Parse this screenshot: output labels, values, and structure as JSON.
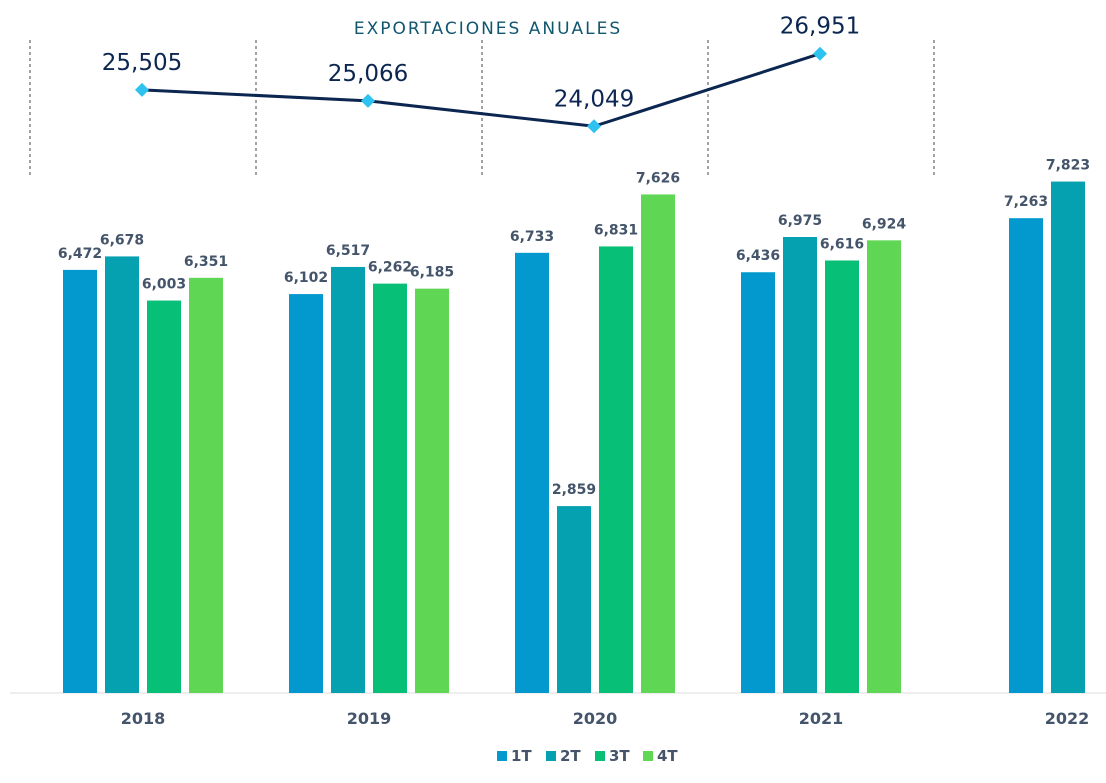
{
  "colors": {
    "q1": "#0399cf",
    "q2": "#06a1b1",
    "q3": "#08bf78",
    "q4": "#5fd654",
    "line": "#0b2650",
    "marker": "#2ec2f0",
    "title": "#10566f",
    "divider": "#666666",
    "baseline": "#dddddd"
  },
  "chart_data": [
    {
      "type": "line",
      "title": "EXPORTACIONES ANUALES",
      "categories": [
        "2018",
        "2019",
        "2020",
        "2021"
      ],
      "values": [
        25505,
        25066,
        24049,
        26951
      ],
      "labels": [
        "25,505",
        "25,066",
        "24,049",
        "26,951"
      ]
    },
    {
      "type": "bar",
      "categories": [
        "2018",
        "2019",
        "2020",
        "2021",
        "2022"
      ],
      "legend": [
        "1T",
        "2T",
        "3T",
        "4T"
      ],
      "ylim": [
        0,
        8000
      ],
      "series": [
        {
          "name": "1T",
          "values": [
            6472,
            6102,
            6733,
            6436,
            7263
          ],
          "labels": [
            "6,472",
            "6,102",
            "6,733",
            "6,436",
            "7,263"
          ]
        },
        {
          "name": "2T",
          "values": [
            6678,
            6517,
            2859,
            6975,
            7823
          ],
          "labels": [
            "6,678",
            "6,517",
            "2,859",
            "6,975",
            "7,823"
          ]
        },
        {
          "name": "3T",
          "values": [
            6003,
            6262,
            6831,
            6616,
            null
          ],
          "labels": [
            "6,003",
            "6,262",
            "6,831",
            "6,616",
            ""
          ]
        },
        {
          "name": "4T",
          "values": [
            6351,
            6185,
            7626,
            6924,
            null
          ],
          "labels": [
            "6,351",
            "6,185",
            "7,626",
            "6,924",
            ""
          ]
        }
      ]
    }
  ]
}
